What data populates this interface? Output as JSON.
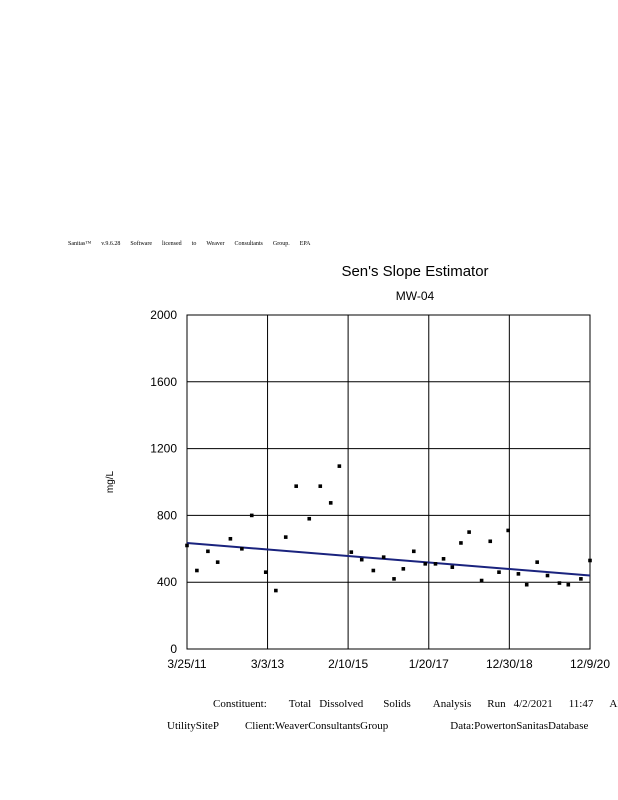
{
  "header": {
    "words": [
      "Sanitas™",
      "v.9.6.28",
      "Software",
      "licensed",
      "to",
      "Weaver",
      "Consultants",
      "Group.",
      "EPA"
    ]
  },
  "chart_data": {
    "type": "scatter",
    "title": "Sen's Slope Estimator",
    "subtitle": "MW-04",
    "ylabel": "mg/L",
    "xlabel": "",
    "ylim": [
      0,
      2000
    ],
    "yticks": [
      0,
      400,
      800,
      1200,
      1600,
      2000
    ],
    "xlim": [
      "2011-03-25",
      "2020-12-09"
    ],
    "xticks": [
      {
        "date": "2011-03-25",
        "label": "3/25/11"
      },
      {
        "date": "2013-03-03",
        "label": "3/3/13"
      },
      {
        "date": "2015-02-10",
        "label": "2/10/15"
      },
      {
        "date": "2017-01-20",
        "label": "1/20/17"
      },
      {
        "date": "2018-12-30",
        "label": "12/30/18"
      },
      {
        "date": "2020-12-09",
        "label": "12/9/20"
      }
    ],
    "grid": true,
    "points": [
      {
        "x": "2011-03-25",
        "y": 620
      },
      {
        "x": "2011-06-20",
        "y": 470
      },
      {
        "x": "2011-09-25",
        "y": 585
      },
      {
        "x": "2011-12-20",
        "y": 520
      },
      {
        "x": "2012-04-10",
        "y": 660
      },
      {
        "x": "2012-07-20",
        "y": 600
      },
      {
        "x": "2012-10-15",
        "y": 800
      },
      {
        "x": "2013-02-15",
        "y": 460
      },
      {
        "x": "2013-05-15",
        "y": 350
      },
      {
        "x": "2013-08-10",
        "y": 670
      },
      {
        "x": "2013-11-10",
        "y": 975
      },
      {
        "x": "2014-03-05",
        "y": 780
      },
      {
        "x": "2014-06-10",
        "y": 975
      },
      {
        "x": "2014-09-10",
        "y": 875
      },
      {
        "x": "2014-11-25",
        "y": 1095
      },
      {
        "x": "2015-03-10",
        "y": 580
      },
      {
        "x": "2015-06-10",
        "y": 535
      },
      {
        "x": "2015-09-20",
        "y": 470
      },
      {
        "x": "2015-12-20",
        "y": 550
      },
      {
        "x": "2016-03-20",
        "y": 420
      },
      {
        "x": "2016-06-10",
        "y": 480
      },
      {
        "x": "2016-09-10",
        "y": 585
      },
      {
        "x": "2016-12-20",
        "y": 510
      },
      {
        "x": "2017-03-20",
        "y": 510
      },
      {
        "x": "2017-05-30",
        "y": 540
      },
      {
        "x": "2017-08-15",
        "y": 490
      },
      {
        "x": "2017-10-30",
        "y": 635
      },
      {
        "x": "2018-01-10",
        "y": 700
      },
      {
        "x": "2018-04-30",
        "y": 410
      },
      {
        "x": "2018-07-15",
        "y": 645
      },
      {
        "x": "2018-09-30",
        "y": 460
      },
      {
        "x": "2018-12-20",
        "y": 710
      },
      {
        "x": "2019-03-20",
        "y": 450
      },
      {
        "x": "2019-06-01",
        "y": 385
      },
      {
        "x": "2019-09-01",
        "y": 520
      },
      {
        "x": "2019-12-01",
        "y": 440
      },
      {
        "x": "2020-03-15",
        "y": 395
      },
      {
        "x": "2020-06-01",
        "y": 385
      },
      {
        "x": "2020-09-20",
        "y": 420
      },
      {
        "x": "2020-12-09",
        "y": 530
      }
    ],
    "trend_line": {
      "color": "#1a237e",
      "start": {
        "x": "2011-03-25",
        "y": 635
      },
      "end": {
        "x": "2020-12-09",
        "y": 440
      }
    }
  },
  "footer": {
    "line1": [
      "Constituent:",
      "Total",
      "Dissolved",
      "Solids",
      "Analysis",
      "Run",
      "4/2/2021",
      "11:47",
      "AM"
    ],
    "line2": [
      "UtilitySiteP",
      "Client:WeaverConsultantsGroup",
      "Data:PowertonSanitasDatabase"
    ]
  }
}
